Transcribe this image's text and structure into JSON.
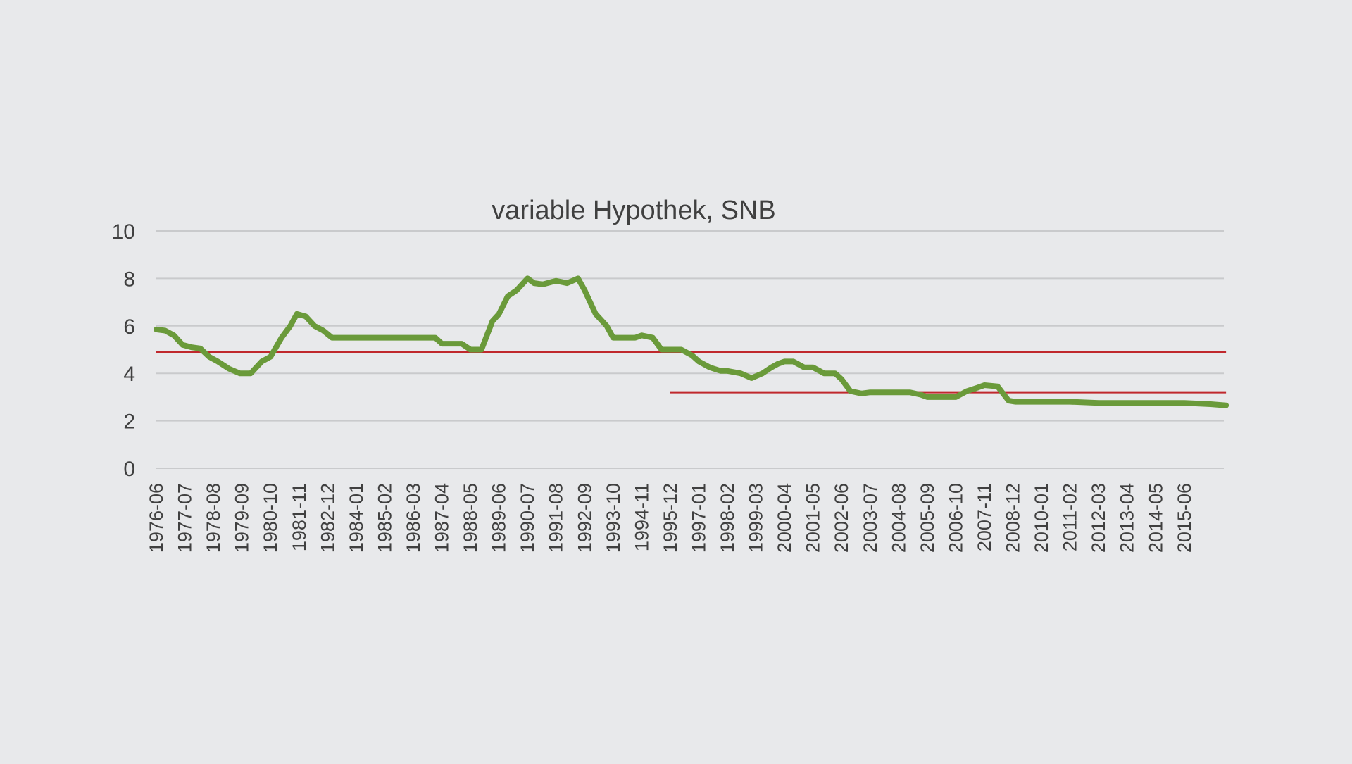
{
  "chart_data": {
    "type": "line",
    "title": "variable Hypothek, SNB",
    "xlabel": "",
    "ylabel": "",
    "ylim": [
      0,
      10
    ],
    "yticks": [
      "0",
      "2",
      "4",
      "6",
      "8",
      "10"
    ],
    "xtick_labels": [
      "1976-06",
      "1977-07",
      "1978-08",
      "1979-09",
      "1980-10",
      "1981-11",
      "1982-12",
      "1984-01",
      "1985-02",
      "1986-03",
      "1987-04",
      "1988-05",
      "1989-06",
      "1990-07",
      "1991-08",
      "1992-09",
      "1993-10",
      "1994-11",
      "1995-12",
      "1997-01",
      "1998-02",
      "1999-03",
      "2000-04",
      "2001-05",
      "2002-06",
      "2003-07",
      "2004-08",
      "2005-09",
      "2006-10",
      "2007-11",
      "2008-12",
      "2010-01",
      "2011-02",
      "2012-03",
      "2013-04",
      "2014-05",
      "2015-06"
    ],
    "grid": true,
    "legend": "none",
    "series": [
      {
        "color": "#6a9a3a",
        "x": [
          "1976-06",
          "1976-10",
          "1977-02",
          "1977-06",
          "1977-10",
          "1978-02",
          "1978-06",
          "1978-10",
          "1979-03",
          "1979-08",
          "1980-01",
          "1980-06",
          "1980-10",
          "1981-03",
          "1981-07",
          "1981-10",
          "1982-02",
          "1982-06",
          "1982-10",
          "1983-02",
          "1984-01",
          "1985-02",
          "1986-03",
          "1987-01",
          "1987-04",
          "1988-01",
          "1988-05",
          "1988-10",
          "1989-03",
          "1989-06",
          "1989-10",
          "1990-02",
          "1990-07",
          "1990-10",
          "1991-02",
          "1991-08",
          "1992-01",
          "1992-06",
          "1992-09",
          "1993-02",
          "1993-07",
          "1993-10",
          "1994-03",
          "1994-08",
          "1994-11",
          "1995-04",
          "1995-08",
          "1995-12",
          "1996-05",
          "1996-10",
          "1997-01",
          "1997-06",
          "1997-11",
          "1998-02",
          "1998-08",
          "1999-01",
          "1999-06",
          "1999-10",
          "2000-01",
          "2000-04",
          "2000-08",
          "2001-01",
          "2001-05",
          "2001-10",
          "2002-03",
          "2002-06",
          "2002-10",
          "2003-03",
          "2003-07",
          "2003-11",
          "2004-04",
          "2004-08",
          "2005-01",
          "2005-06",
          "2005-09",
          "2006-02",
          "2006-06",
          "2006-10",
          "2007-03",
          "2007-08",
          "2007-11",
          "2008-05",
          "2008-10",
          "2009-01",
          "2009-06",
          "2010-01",
          "2011-02",
          "2012-03",
          "2013-04",
          "2014-05",
          "2015-06",
          "2016-06",
          "2017-01"
        ],
        "values": [
          5.85,
          5.8,
          5.6,
          5.2,
          5.1,
          5.05,
          4.7,
          4.5,
          4.2,
          4.0,
          4.0,
          4.5,
          4.7,
          5.5,
          6.0,
          6.5,
          6.4,
          6.0,
          5.8,
          5.5,
          5.5,
          5.5,
          5.5,
          5.5,
          5.25,
          5.25,
          5.0,
          5.0,
          6.2,
          6.5,
          7.25,
          7.5,
          8.0,
          7.8,
          7.75,
          7.9,
          7.8,
          8.0,
          7.5,
          6.5,
          6.0,
          5.5,
          5.5,
          5.5,
          5.6,
          5.5,
          5.0,
          5.0,
          5.0,
          4.75,
          4.5,
          4.25,
          4.1,
          4.1,
          4.0,
          3.8,
          4.0,
          4.25,
          4.4,
          4.5,
          4.5,
          4.25,
          4.25,
          4.0,
          4.0,
          3.75,
          3.25,
          3.15,
          3.2,
          3.2,
          3.2,
          3.2,
          3.2,
          3.1,
          3.0,
          3.0,
          3.0,
          3.0,
          3.25,
          3.4,
          3.5,
          3.45,
          2.85,
          2.8,
          2.8,
          2.8,
          2.8,
          2.75,
          2.75,
          2.75,
          2.75,
          2.7,
          2.65
        ]
      }
    ],
    "reference_lines": [
      {
        "value": 4.9,
        "x_start": "1976-06",
        "x_end": "2017-01",
        "color": "#c0282d"
      },
      {
        "value": 3.2,
        "x_start": "1995-12",
        "x_end": "2017-01",
        "color": "#c0282d"
      }
    ]
  }
}
